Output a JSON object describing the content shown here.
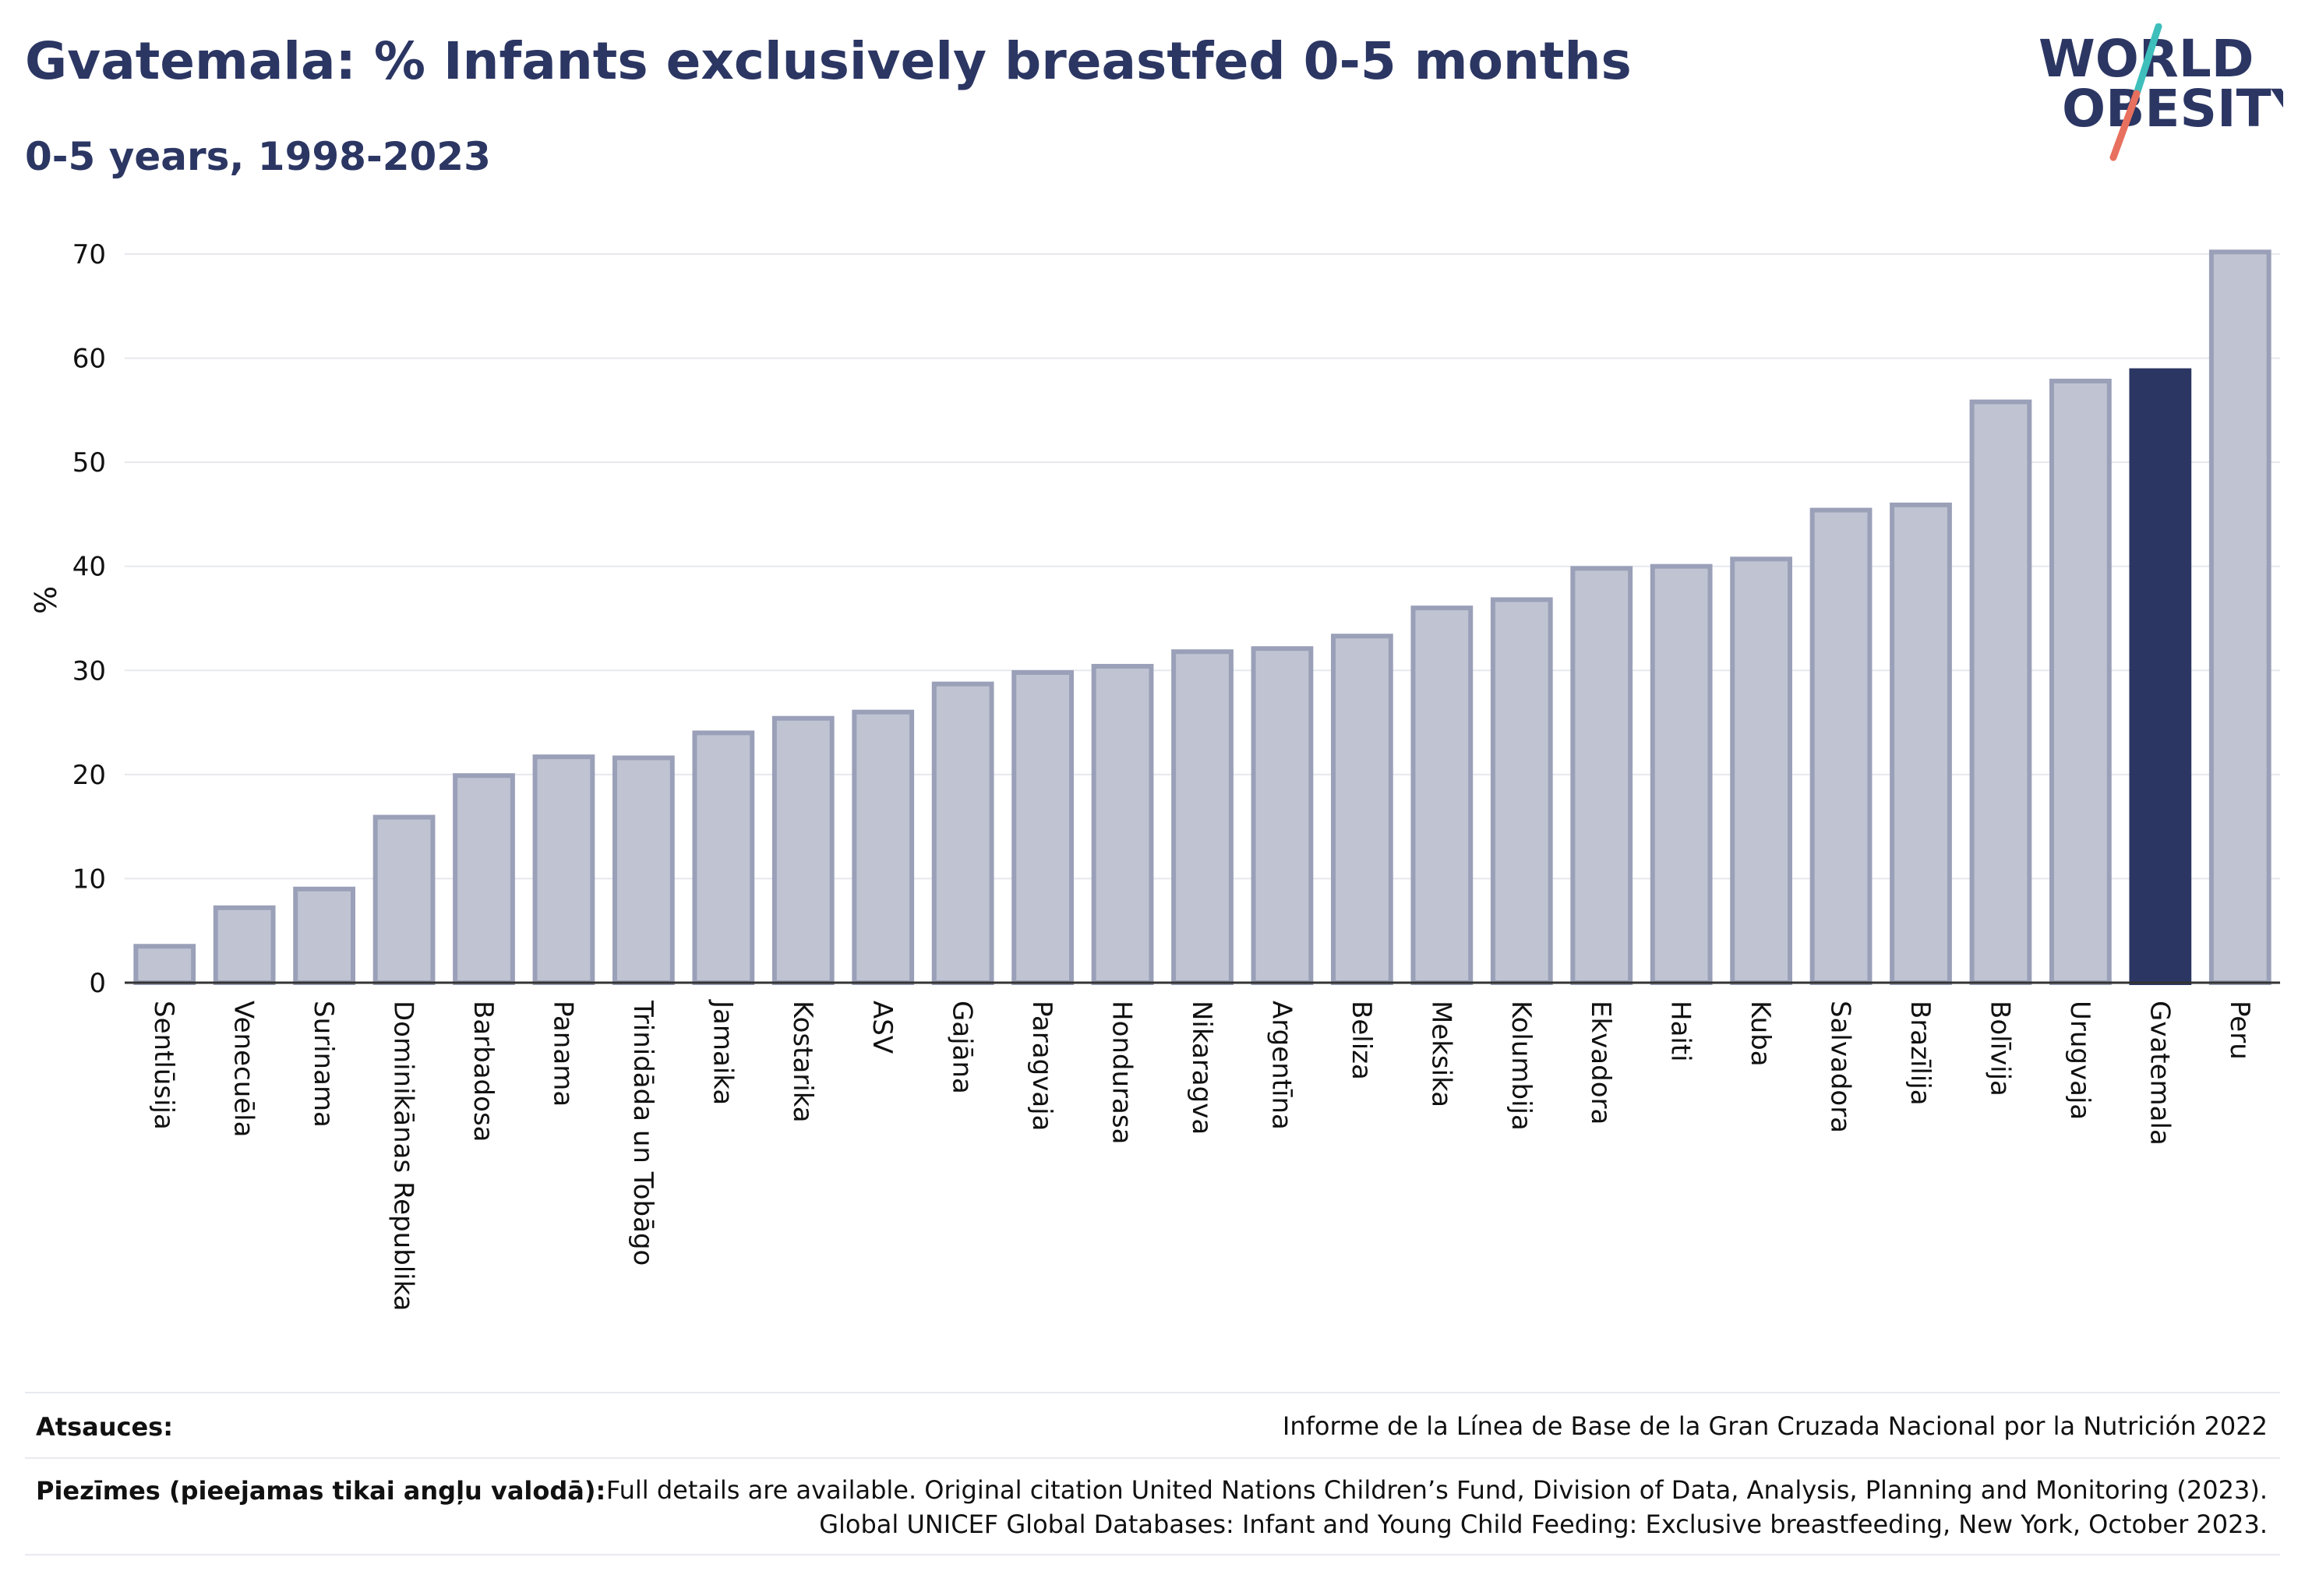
{
  "header": {
    "title": "Gvatemala: % Infants exclusively breastfed 0-5 months",
    "subtitle": "0-5 years, 1998-2023"
  },
  "logo": {
    "line1": "WORLD",
    "line2": "OBESITY"
  },
  "colors": {
    "bar": "#c0c4d2",
    "bar_border": "#9aa0b8",
    "highlight": "#2b3663",
    "grid": "#e6e8ee",
    "text": "#2b3663"
  },
  "chart_data": {
    "type": "bar",
    "ylabel": "%",
    "ylim": [
      0,
      70
    ],
    "yticks": [
      0,
      10,
      20,
      30,
      40,
      50,
      60,
      70
    ],
    "grid": true,
    "highlight": "Gvatemala",
    "categories": [
      "Sentlūsija",
      "Venecuēla",
      "Surinama",
      "Dominikānas Republika",
      "Barbadosa",
      "Panama",
      "Trinidāda un Tobāgo",
      "Jamaika",
      "Kostarika",
      "ASV",
      "Gajāna",
      "Paragvaja",
      "Hondurasa",
      "Nikaragva",
      "Argentīna",
      "Beliza",
      "Meksika",
      "Kolumbija",
      "Ekvadora",
      "Haiti",
      "Kuba",
      "Salvadora",
      "Brazīlija",
      "Bolīvija",
      "Urugvaja",
      "Gvatemala",
      "Peru"
    ],
    "values": [
      3.5,
      7.2,
      9.0,
      15.9,
      19.9,
      21.7,
      21.6,
      24.0,
      25.4,
      26.0,
      28.7,
      29.8,
      30.4,
      31.8,
      32.1,
      33.3,
      36.0,
      36.8,
      39.8,
      40.0,
      40.7,
      45.4,
      45.9,
      55.8,
      57.8,
      58.8,
      70.2
    ]
  },
  "footer": {
    "sources_label": "Atsauces:",
    "sources_text": "Informe de la Línea de Base de la Gran Cruzada Nacional por la Nutrición 2022",
    "notes_label": "Piezīmes (pieejamas tikai angļu valodā):",
    "notes_line1": "Full details are available. Original citation United Nations Children’s Fund, Division of Data, Analysis, Planning and Monitoring (2023).",
    "notes_line2": "Global UNICEF Global Databases: Infant and Young Child Feeding: Exclusive breastfeeding, New York, October 2023."
  }
}
